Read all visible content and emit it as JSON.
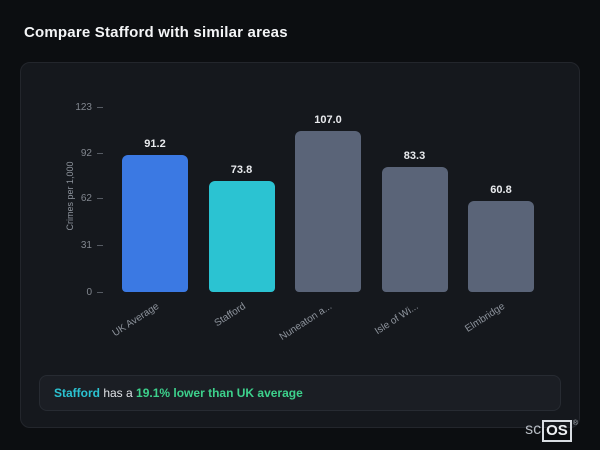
{
  "page": {
    "title": "Compare Stafford with similar areas"
  },
  "chart_data": {
    "type": "bar",
    "title": "Compare Stafford with similar areas",
    "ylabel": "Crimes per 1,000",
    "xlabel": "",
    "categories": [
      "UK Average",
      "Stafford",
      "Nuneaton a...",
      "Isle of Wi...",
      "Elmbridge"
    ],
    "values": [
      91.2,
      73.8,
      107.0,
      83.3,
      60.8
    ],
    "value_labels": [
      "91.2",
      "73.8",
      "107.0",
      "83.3",
      "60.8"
    ],
    "yticks": [
      0,
      31,
      62,
      92,
      123
    ],
    "ylim": [
      0,
      123
    ],
    "bar_colors": [
      "#3b79e3",
      "#2bc3d2",
      "#5a6478",
      "#5a6478",
      "#5a6478"
    ],
    "grid": false,
    "legend": "none"
  },
  "insight": {
    "subject": "Stafford",
    "mid": " has a ",
    "highlight": "19.1% lower than UK average"
  },
  "logo": {
    "prefix": "sc",
    "suffix": "OS",
    "registered": "®"
  },
  "colors": {
    "background": "#0c0e11",
    "card": "#15181d",
    "accent_blue": "#3b79e3",
    "accent_teal": "#2bc3d2",
    "neutral_bar": "#5a6478",
    "insight_subject": "#2bc3d2",
    "insight_highlight": "#3dd18c"
  }
}
